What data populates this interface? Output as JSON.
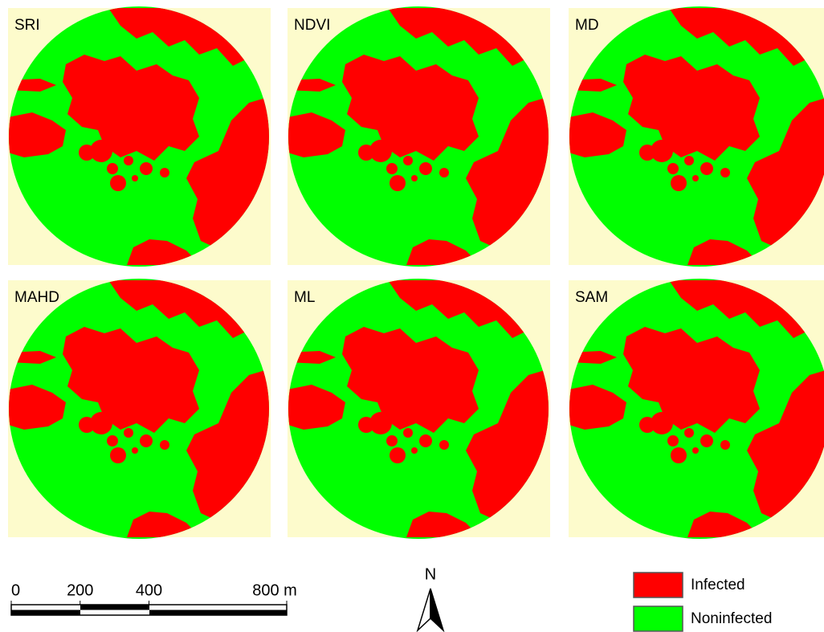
{
  "panels": [
    {
      "label": "SRI"
    },
    {
      "label": "NDVI"
    },
    {
      "label": "MD"
    },
    {
      "label": "MAHD"
    },
    {
      "label": "ML"
    },
    {
      "label": "SAM"
    }
  ],
  "scale_bar": {
    "ticks": [
      0,
      200,
      400,
      {
        "value": 800,
        "label": "800 m"
      }
    ]
  },
  "north_arrow": {
    "label": "N"
  },
  "legend": [
    {
      "label": "Infected",
      "color": "#ff0000"
    },
    {
      "label": "Noninfected",
      "color": "#00ff00"
    }
  ]
}
